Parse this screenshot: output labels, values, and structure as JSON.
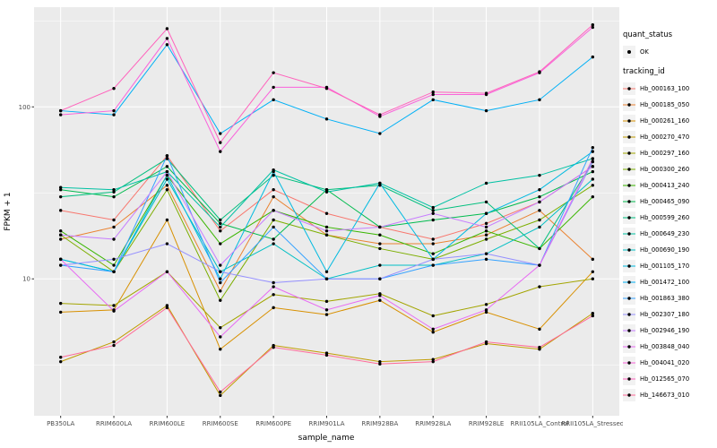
{
  "figure": {
    "background": "#FFFFFF",
    "panel_background": "#EBEBEB",
    "gridline_color": "#FFFFFF",
    "tick_color": "#333333",
    "tick_label_color": "#4D4D4D",
    "point_color": "#000000",
    "legend_key_background": "#F2F2F2"
  },
  "legend": {
    "quant_status_title": "quant_status",
    "quant_status_items": [
      "OK"
    ],
    "tracking_id_title": "tracking_id"
  },
  "chart_data": {
    "type": "line",
    "title": "",
    "xlabel": "sample_name",
    "ylabel": "FPKM + 1",
    "yscale": "log10",
    "ylim": [
      1.6,
      380
    ],
    "y_major_ticks": [
      10,
      100
    ],
    "y_tick_labels": [
      "10",
      "100"
    ],
    "y_minor_ticks": [
      3.1623,
      31.623,
      316.23
    ],
    "grid": true,
    "legend_position": "right",
    "x": [
      "PB350LA",
      "RRIM600LA",
      "RRIM600LE",
      "RRIM600SE",
      "RRIM600PE",
      "RRIM901LA",
      "RRIM928BA",
      "RRIM928LA",
      "RRIM928LE",
      "RRII105LA_Control",
      "RRII105LA_Stressed"
    ],
    "series": [
      {
        "name": "Hb_000163_100",
        "color": "#F8766D",
        "quant_status": "OK",
        "values": [
          25,
          22,
          52,
          19,
          33,
          24,
          20,
          17,
          21,
          28,
          45
        ]
      },
      {
        "name": "Hb_000185_050",
        "color": "#EA8331",
        "quant_status": "OK",
        "values": [
          17,
          20,
          35,
          8.5,
          30,
          18,
          16,
          16,
          18,
          25,
          13
        ]
      },
      {
        "name": "Hb_000261_160",
        "color": "#D89000",
        "quant_status": "OK",
        "values": [
          6.4,
          6.6,
          22,
          3.9,
          6.8,
          6.2,
          7.5,
          4.9,
          6.4,
          5.1,
          11
        ]
      },
      {
        "name": "Hb_000270_470",
        "color": "#C09B00",
        "quant_status": "OK",
        "values": [
          3.3,
          4.3,
          7,
          2.1,
          4.1,
          3.7,
          3.3,
          3.4,
          4.2,
          3.9,
          6.3
        ]
      },
      {
        "name": "Hb_000297_160",
        "color": "#A3A500",
        "quant_status": "OK",
        "values": [
          7.2,
          7,
          11,
          5.2,
          8.1,
          7.4,
          8.2,
          6.1,
          7.1,
          9,
          10
        ]
      },
      {
        "name": "Hb_000300_260",
        "color": "#7CAE00",
        "quant_status": "OK",
        "values": [
          18,
          11,
          33,
          7.5,
          22,
          18,
          15,
          13,
          17,
          22,
          35
        ]
      },
      {
        "name": "Hb_000413_240",
        "color": "#39B600",
        "quant_status": "OK",
        "values": [
          19,
          12,
          40,
          16,
          25,
          20,
          18,
          14,
          19,
          15,
          30
        ]
      },
      {
        "name": "Hb_000465_090",
        "color": "#00BB4E",
        "quant_status": "OK",
        "values": [
          33,
          30,
          45,
          21,
          17,
          33,
          20,
          22,
          24,
          30,
          42
        ]
      },
      {
        "name": "Hb_000599_260",
        "color": "#00BF7D",
        "quant_status": "OK",
        "values": [
          30,
          32,
          50,
          22,
          40,
          33,
          35,
          25,
          28,
          15,
          48
        ]
      },
      {
        "name": "Hb_000649_230",
        "color": "#00C1A3",
        "quant_status": "OK",
        "values": [
          34,
          33,
          42,
          20,
          43,
          32,
          36,
          26,
          36,
          40,
          50
        ]
      },
      {
        "name": "Hb_000690_190",
        "color": "#00BFC4",
        "quant_status": "OK",
        "values": [
          13,
          11,
          38,
          11,
          16,
          10,
          12,
          12,
          14,
          20,
          38
        ]
      },
      {
        "name": "Hb_001105_170",
        "color": "#00BAE0",
        "quant_status": "OK",
        "values": [
          13,
          11,
          40,
          10,
          42,
          11,
          36,
          13,
          24,
          33,
          55
        ]
      },
      {
        "name": "Hb_001472_100",
        "color": "#00B0F6",
        "quant_status": "OK",
        "values": [
          95,
          90,
          230,
          70,
          110,
          85,
          70,
          110,
          95,
          110,
          195
        ]
      },
      {
        "name": "Hb_001863_380",
        "color": "#35A2FF",
        "quant_status": "OK",
        "values": [
          12,
          11,
          52,
          9.5,
          20,
          10,
          10,
          12,
          13,
          12,
          58
        ]
      },
      {
        "name": "Hb_002307_180",
        "color": "#9590FF",
        "quant_status": "OK",
        "values": [
          12,
          13,
          16,
          11,
          9.5,
          10,
          10,
          13,
          14,
          12,
          48
        ]
      },
      {
        "name": "Hb_002946_190",
        "color": "#C77CFF",
        "quant_status": "OK",
        "values": [
          18,
          17,
          42,
          12,
          25,
          19,
          20,
          24,
          20,
          28,
          45
        ]
      },
      {
        "name": "Hb_003848_040",
        "color": "#E76BF3",
        "quant_status": "OK",
        "values": [
          13,
          6.5,
          11,
          4.6,
          9,
          6.6,
          8,
          5.1,
          6.6,
          12,
          50
        ]
      },
      {
        "name": "Hb_004041_020",
        "color": "#FA62DB",
        "quant_status": "OK",
        "values": [
          90,
          95,
          250,
          55,
          130,
          130,
          88,
          118,
          118,
          158,
          290
        ]
      },
      {
        "name": "Hb_012565_070",
        "color": "#FF62BC",
        "quant_status": "OK",
        "values": [
          95,
          128,
          285,
          62,
          158,
          128,
          90,
          122,
          120,
          160,
          300
        ]
      },
      {
        "name": "Hb_146673_010",
        "color": "#FF6A98",
        "quant_status": "OK",
        "values": [
          3.5,
          4.1,
          6.8,
          2.2,
          4,
          3.6,
          3.2,
          3.3,
          4.3,
          4,
          6.1
        ]
      }
    ]
  }
}
